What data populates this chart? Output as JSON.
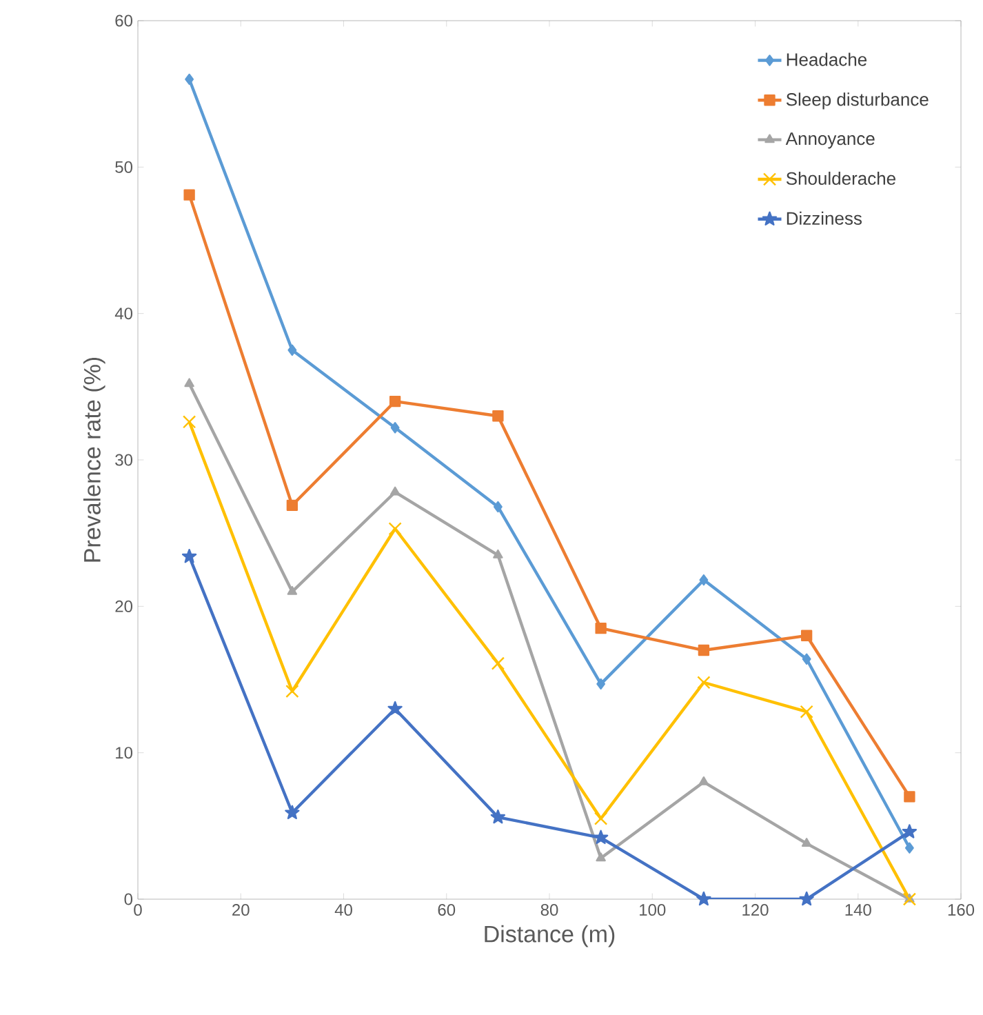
{
  "chart_data": {
    "type": "line",
    "xlabel": "Distance (m)",
    "ylabel": "Prevalence rate (%)",
    "x": [
      10,
      30,
      50,
      70,
      90,
      110,
      130,
      150
    ],
    "xlim": [
      0,
      160
    ],
    "xticks": [
      0,
      20,
      40,
      60,
      80,
      100,
      120,
      140,
      160
    ],
    "ylim": [
      0,
      60
    ],
    "yticks": [
      0,
      10,
      20,
      30,
      40,
      50,
      60
    ],
    "legend": "top right",
    "grid": false,
    "line_style": "solid",
    "series": [
      {
        "name": "Headache",
        "color": "#5b9bd5",
        "marker": "diamond",
        "values": [
          56.0,
          37.5,
          32.2,
          26.8,
          14.7,
          21.8,
          16.4,
          3.5
        ]
      },
      {
        "name": "Sleep disturbance",
        "color": "#ed7d31",
        "marker": "square",
        "values": [
          48.1,
          26.9,
          34.0,
          33.0,
          18.5,
          17.0,
          18.0,
          7.0
        ]
      },
      {
        "name": "Annoyance",
        "color": "#a5a5a5",
        "marker": "triangle",
        "values": [
          35.2,
          21.0,
          27.8,
          23.5,
          2.8,
          8.0,
          3.8,
          0
        ]
      },
      {
        "name": "Shoulderache",
        "color": "#ffc000",
        "marker": "cross",
        "values": [
          32.6,
          14.2,
          25.3,
          16.1,
          5.5,
          14.8,
          12.8,
          0
        ]
      },
      {
        "name": "Dizziness",
        "color": "#4472c4",
        "marker": "star",
        "values": [
          23.4,
          5.9,
          13.0,
          5.6,
          4.2,
          0,
          0,
          4.6
        ]
      }
    ]
  }
}
